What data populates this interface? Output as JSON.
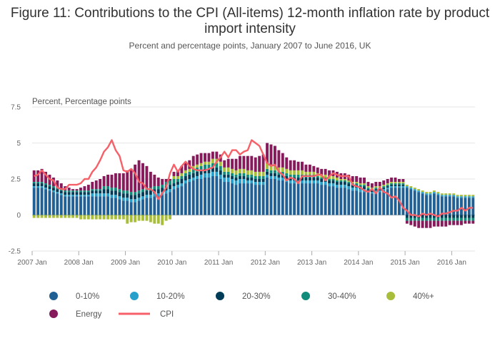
{
  "chart_data": {
    "type": "bar",
    "title": "Figure 11: Contributions to the CPI (All-items) 12-month inflation rate by product import intensity",
    "subtitle": "Percent and percentage points, January 2007 to June 2016, UK",
    "ylabel": "Percent, Percentage points",
    "xlabel": "",
    "ylim": [
      -2.5,
      7.5
    ],
    "yticks": [
      "7.5",
      "5",
      "2.5",
      "0",
      "-2.5"
    ],
    "x_tick_labels": [
      "2007 Jan",
      "2008 Jan",
      "2009 Jan",
      "2010 Jan",
      "2011 Jan",
      "2012 Jan",
      "2013 Jan",
      "2014 Jan",
      "2015 Jan",
      "2016 Jan"
    ],
    "x_start": "2007-01",
    "grid": true,
    "legend_position": "bottom",
    "colors": {
      "0-10%": "#206095",
      "10-20%": "#27a0cc",
      "20-30%": "#003c57",
      "30-40%": "#118c7b",
      "40%+": "#a8bd3a",
      "Energy": "#871a5b",
      "CPI": "#f66068"
    },
    "series": [
      {
        "name": "0-10%",
        "values": [
          1.9,
          1.9,
          1.9,
          1.8,
          1.7,
          1.6,
          1.5,
          1.4,
          1.3,
          1.3,
          1.3,
          1.3,
          1.3,
          1.3,
          1.3,
          1.3,
          1.3,
          1.3,
          1.3,
          1.3,
          1.2,
          1.2,
          1.1,
          1.0,
          1.0,
          0.9,
          0.9,
          1.0,
          1.1,
          1.2,
          1.2,
          1.3,
          1.3,
          1.4,
          1.5,
          1.6,
          1.8,
          1.9,
          2.0,
          2.2,
          2.3,
          2.4,
          2.5,
          2.5,
          2.6,
          2.6,
          2.7,
          2.7,
          2.5,
          2.3,
          2.3,
          2.2,
          2.1,
          2.2,
          2.2,
          2.2,
          2.2,
          2.1,
          2.1,
          2.1,
          2.6,
          2.5,
          2.5,
          2.4,
          2.4,
          2.3,
          2.2,
          2.2,
          2.2,
          2.2,
          2.2,
          2.2,
          2.2,
          2.2,
          2.1,
          2.1,
          2.0,
          2.0,
          1.9,
          1.9,
          1.9,
          1.8,
          1.7,
          1.7,
          1.6,
          1.6,
          1.6,
          1.5,
          1.6,
          1.6,
          1.7,
          1.8,
          1.9,
          1.9,
          1.9,
          1.9,
          1.9,
          1.8,
          1.7,
          1.6,
          1.5,
          1.4,
          1.4,
          1.5,
          1.4,
          1.3,
          1.3,
          1.3,
          1.3,
          1.2,
          1.2,
          1.2,
          1.2,
          1.2
        ]
      },
      {
        "name": "10-20%",
        "values": [
          0.1,
          0.1,
          0.1,
          0.1,
          0.1,
          0.1,
          0.1,
          0.1,
          0.1,
          0.1,
          0.1,
          0.1,
          0.1,
          0.1,
          0.1,
          0.2,
          0.2,
          0.2,
          0.2,
          0.2,
          0.2,
          0.2,
          0.2,
          0.2,
          0.2,
          0.2,
          0.2,
          0.2,
          0.2,
          0.2,
          0.2,
          0.2,
          0.2,
          0.2,
          0.2,
          0.2,
          0.2,
          0.2,
          0.2,
          0.2,
          0.2,
          0.2,
          0.2,
          0.3,
          0.3,
          0.3,
          0.3,
          0.3,
          0.3,
          0.3,
          0.3,
          0.3,
          0.3,
          0.3,
          0.3,
          0.2,
          0.2,
          0.2,
          0.2,
          0.2,
          0.2,
          0.2,
          0.2,
          0.2,
          0.2,
          0.2,
          0.2,
          0.2,
          0.2,
          0.2,
          0.2,
          0.2,
          0.2,
          0.2,
          0.2,
          0.2,
          0.2,
          0.2,
          0.2,
          0.2,
          0.2,
          0.2,
          0.2,
          0.2,
          0.2,
          0.2,
          0.1,
          0.1,
          0.1,
          0.1,
          0.1,
          0.1,
          0.1,
          0.1,
          0.1,
          0.1,
          0.1,
          0.1,
          0.1,
          0.1,
          0.1,
          0.1,
          0.1,
          0.1,
          0.1,
          0.1,
          0.1,
          0.1,
          0.1,
          0.1,
          0.1,
          0.1,
          0.1,
          0.1
        ]
      },
      {
        "name": "20-30%",
        "values": [
          0.2,
          0.2,
          0.2,
          0.2,
          0.2,
          0.2,
          0.2,
          0.2,
          0.2,
          0.2,
          0.2,
          0.2,
          0.2,
          0.2,
          0.2,
          0.2,
          0.2,
          0.2,
          0.3,
          0.3,
          0.3,
          0.3,
          0.3,
          0.3,
          0.3,
          0.3,
          0.3,
          0.3,
          0.3,
          0.3,
          0.3,
          0.3,
          0.3,
          0.3,
          0.3,
          0.3,
          0.2,
          0.2,
          0.3,
          0.3,
          0.3,
          0.3,
          0.3,
          0.3,
          0.3,
          0.3,
          0.3,
          0.3,
          0.3,
          0.2,
          0.2,
          0.2,
          0.2,
          0.2,
          0.2,
          0.2,
          0.2,
          0.2,
          0.2,
          0.2,
          0.2,
          0.2,
          0.2,
          0.2,
          0.2,
          0.2,
          0.2,
          0.2,
          0.2,
          0.2,
          0.2,
          0.2,
          0.2,
          0.2,
          0.2,
          0.2,
          0.2,
          0.2,
          0.2,
          0.2,
          0.2,
          0.2,
          0.2,
          0.2,
          0.2,
          0.2,
          0.1,
          0.1,
          0.1,
          0.1,
          0.1,
          0.1,
          0.1,
          0.1,
          0.1,
          0.1,
          -0.2,
          -0.2,
          -0.2,
          -0.2,
          -0.2,
          -0.2,
          -0.2,
          -0.2,
          -0.2,
          -0.2,
          -0.2,
          -0.2,
          -0.2,
          -0.2,
          -0.2,
          -0.2,
          -0.2,
          -0.2
        ]
      },
      {
        "name": "30-40%",
        "values": [
          0.1,
          0.1,
          0.1,
          0.1,
          0.1,
          0.1,
          0.1,
          0.1,
          0.1,
          0.1,
          0.1,
          0.1,
          0.1,
          0.1,
          0.1,
          0.1,
          0.1,
          0.1,
          0.2,
          0.2,
          0.2,
          0.2,
          0.2,
          0.2,
          0.2,
          0.2,
          0.2,
          0.2,
          0.2,
          0.2,
          0.2,
          0.2,
          0.2,
          0.2,
          0.3,
          0.3,
          0.3,
          0.2,
          0.2,
          0.2,
          0.2,
          0.3,
          0.3,
          0.3,
          0.3,
          0.3,
          0.3,
          0.3,
          0.3,
          0.2,
          0.2,
          0.2,
          0.2,
          0.2,
          0.2,
          0.2,
          0.2,
          0.2,
          0.2,
          0.2,
          0.2,
          0.2,
          0.2,
          0.2,
          0.2,
          0.2,
          0.2,
          0.2,
          0.2,
          0.2,
          0.2,
          0.2,
          0.2,
          0.1,
          0.1,
          0.1,
          0.1,
          0.1,
          0.1,
          0.1,
          0.1,
          0.1,
          0.1,
          0.1,
          0.1,
          0.1,
          0.1,
          0.1,
          0.1,
          0.1,
          0.1,
          0.1,
          0.1,
          0.1,
          0.1,
          0.1,
          -0.2,
          -0.2,
          -0.2,
          -0.2,
          -0.2,
          -0.2,
          -0.2,
          -0.2,
          -0.2,
          -0.2,
          -0.2,
          -0.2,
          -0.2,
          -0.2,
          -0.2,
          -0.2,
          -0.2,
          -0.2
        ]
      },
      {
        "name": "40%+",
        "values": [
          -0.2,
          -0.2,
          -0.2,
          -0.2,
          -0.2,
          -0.2,
          -0.2,
          -0.2,
          -0.2,
          -0.2,
          -0.2,
          -0.2,
          -0.3,
          -0.3,
          -0.3,
          -0.3,
          -0.3,
          -0.3,
          -0.3,
          -0.3,
          -0.3,
          -0.3,
          -0.3,
          -0.3,
          -0.6,
          -0.5,
          -0.5,
          -0.4,
          -0.4,
          -0.4,
          -0.5,
          -0.6,
          -0.6,
          -0.7,
          -0.4,
          -0.3,
          0.2,
          0.2,
          0.2,
          0.2,
          0.2,
          0.2,
          0.2,
          0.2,
          0.2,
          0.2,
          0.3,
          0.3,
          0.3,
          0.3,
          0.3,
          0.3,
          0.3,
          0.3,
          0.3,
          0.3,
          0.3,
          0.3,
          0.3,
          0.3,
          0.4,
          0.4,
          0.3,
          0.3,
          0.3,
          0.3,
          0.3,
          0.3,
          0.3,
          0.3,
          0.2,
          0.2,
          0.2,
          0.2,
          0.2,
          0.2,
          0.2,
          0.2,
          0.2,
          0.1,
          0.1,
          0.1,
          0.1,
          0.1,
          0.1,
          0.1,
          0.1,
          0.1,
          0.1,
          0.1,
          0.1,
          0.1,
          0.1,
          0.1,
          0.1,
          0.1,
          0.1,
          0.1,
          0.1,
          0.1,
          0.1,
          0.1,
          0.1,
          0.1,
          0.1,
          0.1,
          0.1,
          0.1,
          0.1,
          0.1,
          0.1,
          0.1,
          0.1,
          0.1
        ]
      },
      {
        "name": "Energy",
        "values": [
          0.8,
          0.8,
          0.9,
          0.8,
          0.7,
          0.6,
          0.5,
          0.4,
          0.3,
          0.2,
          0.1,
          0.1,
          0.2,
          0.3,
          0.4,
          0.5,
          0.6,
          0.7,
          0.7,
          0.8,
          0.9,
          1.0,
          1.1,
          1.2,
          1.4,
          1.6,
          1.9,
          2.1,
          1.8,
          1.5,
          1.1,
          0.8,
          0.6,
          0.4,
          0.2,
          0.1,
          0.3,
          0.4,
          0.5,
          0.6,
          0.6,
          0.7,
          0.7,
          0.7,
          0.6,
          0.6,
          0.5,
          0.5,
          0.5,
          0.5,
          0.6,
          0.7,
          0.8,
          0.9,
          0.9,
          1.0,
          1.0,
          1.0,
          1.1,
          1.2,
          1.4,
          1.4,
          1.4,
          1.2,
          1.0,
          0.8,
          0.7,
          0.7,
          0.6,
          0.6,
          0.5,
          0.5,
          0.4,
          0.4,
          0.4,
          0.4,
          0.4,
          0.4,
          0.4,
          0.4,
          0.4,
          0.4,
          0.4,
          0.4,
          0.4,
          0.4,
          0.3,
          0.3,
          0.3,
          0.3,
          0.3,
          0.3,
          0.3,
          0.3,
          0.2,
          0.2,
          -0.2,
          -0.3,
          -0.4,
          -0.5,
          -0.5,
          -0.5,
          -0.5,
          -0.4,
          -0.4,
          -0.4,
          -0.4,
          -0.3,
          -0.3,
          -0.3,
          -0.3,
          -0.2,
          -0.2,
          -0.2
        ]
      },
      {
        "name": "CPI",
        "type": "line",
        "values": [
          2.7,
          2.8,
          3.1,
          2.8,
          2.5,
          2.4,
          1.9,
          1.8,
          1.8,
          2.1,
          2.1,
          2.1,
          2.2,
          2.5,
          2.5,
          3.0,
          3.3,
          3.8,
          4.4,
          4.7,
          5.2,
          4.5,
          4.1,
          3.1,
          3.0,
          3.2,
          2.9,
          2.3,
          2.2,
          1.8,
          1.8,
          1.6,
          1.1,
          1.5,
          1.9,
          2.9,
          3.5,
          3.0,
          3.4,
          3.7,
          3.4,
          3.2,
          3.1,
          3.1,
          3.1,
          3.2,
          3.3,
          3.7,
          4.0,
          4.4,
          4.0,
          4.5,
          4.5,
          4.2,
          4.4,
          4.5,
          5.2,
          5.0,
          4.8,
          4.2,
          3.6,
          3.4,
          3.5,
          3.0,
          2.8,
          2.4,
          2.6,
          2.5,
          2.2,
          2.7,
          2.7,
          2.7,
          2.7,
          2.8,
          2.8,
          2.4,
          2.7,
          2.9,
          2.8,
          2.7,
          2.7,
          2.7,
          2.1,
          2.0,
          1.9,
          1.7,
          1.6,
          1.8,
          1.5,
          1.9,
          1.6,
          1.5,
          1.2,
          1.3,
          1.0,
          0.5,
          0.3,
          0.0,
          0.0,
          -0.1,
          0.1,
          0.0,
          0.1,
          0.0,
          -0.1,
          0.1,
          0.1,
          0.2,
          0.3,
          0.3,
          0.5,
          0.3,
          0.5,
          0.5
        ]
      }
    ]
  }
}
